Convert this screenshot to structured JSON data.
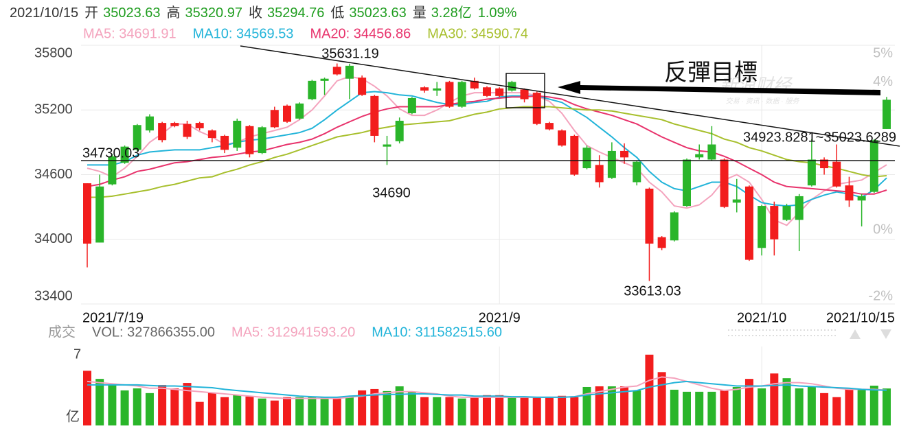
{
  "header": {
    "date": "2021/10/15",
    "fields": [
      {
        "label": "开",
        "value": "35023.63"
      },
      {
        "label": "高",
        "value": "35320.97"
      },
      {
        "label": "收",
        "value": "35294.76"
      },
      {
        "label": "低",
        "value": "35023.63"
      },
      {
        "label": "量",
        "value": "3.28亿"
      }
    ],
    "change": "1.09%"
  },
  "watermark": {
    "title": "新浪财经",
    "subtitle": "交易 · 资讯 · 数据 · 服务"
  },
  "chart_data": [
    {
      "type": "candlestick",
      "categories": [
        "2021/7/19",
        null,
        null,
        null,
        null,
        null,
        null,
        null,
        null,
        null,
        null,
        null,
        null,
        null,
        null,
        null,
        null,
        null,
        null,
        null,
        null,
        null,
        null,
        null,
        null,
        null,
        null,
        null,
        null,
        null,
        null,
        null,
        null,
        "2021/9",
        null,
        null,
        null,
        null,
        null,
        null,
        null,
        null,
        null,
        null,
        null,
        null,
        null,
        null,
        null,
        null,
        null,
        null,
        null,
        null,
        "2021/10",
        null,
        null,
        null,
        null,
        null,
        null,
        null,
        null,
        null,
        "2021/10/15"
      ],
      "open": [
        34520,
        33970,
        34510,
        34710,
        34830,
        35010,
        35080,
        35080,
        35070,
        35080,
        35010,
        34960,
        34850,
        35050,
        34800,
        35200,
        35240,
        35120,
        35300,
        35470,
        35600,
        35490,
        35500,
        35330,
        34860,
        34910,
        35170,
        35410,
        35380,
        35460,
        35230,
        35470,
        35410,
        35400,
        35380,
        35390,
        35360,
        35080,
        35010,
        34960,
        34660,
        34690,
        34570,
        34820,
        34530,
        34470,
        34020,
        33990,
        34310,
        34760,
        34740,
        34740,
        34340,
        34490,
        33920,
        34310,
        34180,
        34180,
        34500,
        34740,
        34720,
        34500,
        34360,
        34440,
        35023.63
      ],
      "high": [
        34520,
        34600,
        34790,
        34870,
        35070,
        35160,
        35090,
        35090,
        35100,
        35090,
        35020,
        34970,
        35120,
        35060,
        35050,
        35230,
        35250,
        35270,
        35480,
        35500,
        35631.19,
        35630,
        35520,
        35340,
        34960,
        35130,
        35320,
        35420,
        35460,
        35470,
        35470,
        35500,
        35420,
        35410,
        35470,
        35400,
        35370,
        35090,
        35020,
        34970,
        34870,
        34780,
        34900,
        34890,
        34730,
        34480,
        34030,
        34260,
        34750,
        34880,
        35050,
        34750,
        34560,
        34500,
        34320,
        34350,
        34330,
        34420,
        34930,
        34760,
        34880,
        34580,
        34420,
        34930,
        35320.97
      ],
      "low": [
        33740,
        33970,
        34500,
        34700,
        34820,
        34990,
        34900,
        35040,
        34930,
        35010,
        34900,
        34800,
        34820,
        34760,
        34790,
        35030,
        35080,
        35110,
        35290,
        35340,
        35520,
        35300,
        35330,
        34900,
        34690,
        34890,
        35160,
        35360,
        35330,
        35220,
        35220,
        35390,
        35320,
        35320,
        35370,
        35270,
        35060,
        35010,
        34860,
        34590,
        34650,
        34480,
        34560,
        34700,
        34500,
        33613.03,
        33900,
        33980,
        34300,
        34740,
        34730,
        34290,
        34250,
        33800,
        33850,
        33850,
        34170,
        33890,
        34490,
        34600,
        34480,
        34300,
        34120,
        34430,
        35023.63
      ],
      "close": [
        33960,
        34490,
        34770,
        34860,
        35060,
        35140,
        34920,
        35050,
        34950,
        35030,
        34940,
        34830,
        35100,
        34790,
        35040,
        35040,
        35090,
        35260,
        35470,
        35490,
        35530,
        35610,
        35340,
        34960,
        34880,
        35100,
        35310,
        35380,
        35400,
        35230,
        35460,
        35400,
        35330,
        35330,
        35460,
        35300,
        35070,
        35020,
        34870,
        34600,
        34850,
        34530,
        34820,
        34760,
        34720,
        33960,
        33920,
        34250,
        34740,
        34790,
        34880,
        34300,
        34370,
        33810,
        34310,
        34000,
        34310,
        34400,
        34740,
        34660,
        34490,
        34360,
        34400,
        34920,
        35294.76
      ],
      "up_color": "#2ab52a",
      "down_color": "#f21d1d",
      "ylim": [
        33400,
        35800
      ],
      "yticks": [
        35800,
        35200,
        34600,
        34000,
        33400
      ],
      "y2lim": [
        -2,
        5
      ],
      "y2ticks": [
        {
          "value": 5,
          "label": "5%"
        },
        {
          "value": 4,
          "label": "4%"
        },
        {
          "value": 0,
          "label": "0%"
        },
        {
          "value": -2,
          "label": "-2%"
        }
      ],
      "grid": true,
      "ma_series": [
        {
          "name": "MA5: 34691.91",
          "color": "#f4a3bd",
          "values": [
            34660,
            34630,
            34580,
            34660,
            34770,
            34900,
            34980,
            35070,
            35070,
            35000,
            34950,
            34880,
            34900,
            34950,
            34980,
            35010,
            35040,
            35110,
            35200,
            35330,
            35470,
            35510,
            35490,
            35420,
            35330,
            35210,
            35150,
            35150,
            35200,
            35270,
            35330,
            35360,
            35360,
            35360,
            35360,
            35360,
            35330,
            35280,
            35170,
            35010,
            34870,
            34810,
            34760,
            34710,
            34660,
            34530,
            34440,
            34310,
            34290,
            34320,
            34410,
            34550,
            34600,
            34530,
            34370,
            34180,
            34130,
            34250,
            34370,
            34450,
            34510,
            34530,
            34550,
            34620,
            34691.91
          ]
        },
        {
          "name": "MA10: 34569.53",
          "color": "#22b4d9",
          "values": [
            34690,
            34690,
            34690,
            34720,
            34780,
            34810,
            34820,
            34830,
            34830,
            34830,
            34850,
            34870,
            34900,
            34920,
            34930,
            34950,
            34970,
            34990,
            35030,
            35110,
            35200,
            35280,
            35360,
            35370,
            35360,
            35340,
            35330,
            35300,
            35270,
            35250,
            35250,
            35270,
            35280,
            35320,
            35330,
            35330,
            35330,
            35300,
            35270,
            35200,
            35130,
            35040,
            34950,
            34850,
            34760,
            34630,
            34530,
            34470,
            34450,
            34490,
            34530,
            34530,
            34490,
            34410,
            34340,
            34320,
            34310,
            34320,
            34370,
            34410,
            34440,
            34420,
            34390,
            34460,
            34569.53
          ]
        },
        {
          "name": "MA20: 34456.86",
          "color": "#e8336c",
          "values": [
            34490,
            34510,
            34550,
            34580,
            34630,
            34650,
            34680,
            34710,
            34720,
            34740,
            34760,
            34770,
            34790,
            34810,
            34820,
            34850,
            34880,
            34900,
            34930,
            34980,
            35040,
            35090,
            35140,
            35180,
            35210,
            35230,
            35230,
            35230,
            35230,
            35250,
            35270,
            35280,
            35300,
            35310,
            35320,
            35320,
            35330,
            35320,
            35300,
            35250,
            35210,
            35180,
            35150,
            35110,
            35070,
            35010,
            34950,
            34900,
            34850,
            34820,
            34810,
            34770,
            34720,
            34660,
            34600,
            34530,
            34490,
            34480,
            34470,
            34460,
            34450,
            34440,
            34420,
            34420,
            34456.86
          ]
        },
        {
          "name": "MA30: 34590.74",
          "color": "#a7bf2c",
          "values": [
            34390,
            34390,
            34400,
            34420,
            34440,
            34460,
            34490,
            34510,
            34540,
            34570,
            34580,
            34620,
            34650,
            34690,
            34720,
            34760,
            34790,
            34830,
            34870,
            34910,
            34950,
            34970,
            34990,
            35020,
            35040,
            35060,
            35070,
            35080,
            35090,
            35100,
            35130,
            35160,
            35180,
            35210,
            35220,
            35230,
            35230,
            35230,
            35220,
            35210,
            35200,
            35200,
            35190,
            35170,
            35150,
            35130,
            35110,
            35070,
            35040,
            35010,
            34980,
            34930,
            34900,
            34850,
            34820,
            34780,
            34740,
            34720,
            34710,
            34680,
            34660,
            34630,
            34600,
            34580,
            34590.74
          ]
        }
      ],
      "hlines": [
        {
          "value": 34730.03,
          "label": "34730.03"
        }
      ],
      "annotations": [
        {
          "text": "35631.19"
        },
        {
          "text": "34690"
        },
        {
          "text": "33613.03"
        },
        {
          "text": "34923.8281~35023.6289"
        },
        {
          "text": "反彈目標"
        }
      ]
    },
    {
      "type": "bar",
      "label": "成交",
      "volume_label": "VOL: 327866355.00",
      "values": [
        4.85,
        4.13,
        3.59,
        3.11,
        3.29,
        2.87,
        3.59,
        3.29,
        3.77,
        2.09,
        2.87,
        2.51,
        2.69,
        2.57,
        2.39,
        2.21,
        2.51,
        2.51,
        2.51,
        2.51,
        2.45,
        2.51,
        3.11,
        3.23,
        3.05,
        3.47,
        2.99,
        2.51,
        2.51,
        2.51,
        2.39,
        2.51,
        2.69,
        2.69,
        2.51,
        2.51,
        2.51,
        2.51,
        2.63,
        2.51,
        3.41,
        3.47,
        3.47,
        3.47,
        3.11,
        6.28,
        4.73,
        3.17,
        2.99,
        2.99,
        2.99,
        3.17,
        3.41,
        4.13,
        3.29,
        4.61,
        4.19,
        3.29,
        3.41,
        2.87,
        2.51,
        3.29,
        3.17,
        3.53,
        3.28
      ],
      "ylim": [
        0,
        7
      ],
      "yticks": [
        7,
        {
          "value": 0,
          "label": "亿"
        }
      ],
      "ma_series": [
        {
          "name": "MA5: 312941593.20",
          "color": "#f4a3bd",
          "values": [
            3.9,
            3.8,
            3.7,
            3.6,
            3.5,
            3.3,
            3.3,
            3.2,
            3.1,
            3.0,
            2.9,
            2.8,
            2.7,
            2.6,
            2.5,
            2.45,
            2.4,
            2.4,
            2.4,
            2.4,
            2.4,
            2.5,
            2.6,
            2.8,
            2.9,
            3.0,
            3.0,
            2.9,
            2.8,
            2.6,
            2.5,
            2.5,
            2.5,
            2.5,
            2.5,
            2.5,
            2.5,
            2.5,
            2.5,
            2.55,
            2.8,
            3.0,
            3.2,
            3.4,
            3.5,
            4.0,
            4.3,
            4.2,
            3.9,
            3.6,
            3.3,
            3.1,
            3.2,
            3.4,
            3.5,
            3.7,
            3.8,
            3.8,
            3.7,
            3.5,
            3.3,
            3.2,
            3.2,
            3.2,
            3.129415932
          ]
        },
        {
          "name": "MA10: 311582515.60",
          "color": "#22b4d9",
          "values": [
            3.6,
            3.6,
            3.6,
            3.6,
            3.6,
            3.55,
            3.5,
            3.5,
            3.45,
            3.4,
            3.35,
            3.2,
            3.1,
            3.0,
            2.9,
            2.8,
            2.7,
            2.6,
            2.55,
            2.5,
            2.5,
            2.6,
            2.65,
            2.7,
            2.75,
            2.75,
            2.8,
            2.8,
            2.75,
            2.7,
            2.7,
            2.6,
            2.6,
            2.6,
            2.55,
            2.55,
            2.5,
            2.5,
            2.5,
            2.55,
            2.7,
            2.8,
            2.9,
            3.0,
            3.1,
            3.4,
            3.6,
            3.8,
            3.9,
            3.8,
            3.7,
            3.6,
            3.5,
            3.5,
            3.5,
            3.55,
            3.6,
            3.5,
            3.45,
            3.4,
            3.35,
            3.3,
            3.2,
            3.15,
            3.115825156
          ]
        }
      ]
    }
  ]
}
